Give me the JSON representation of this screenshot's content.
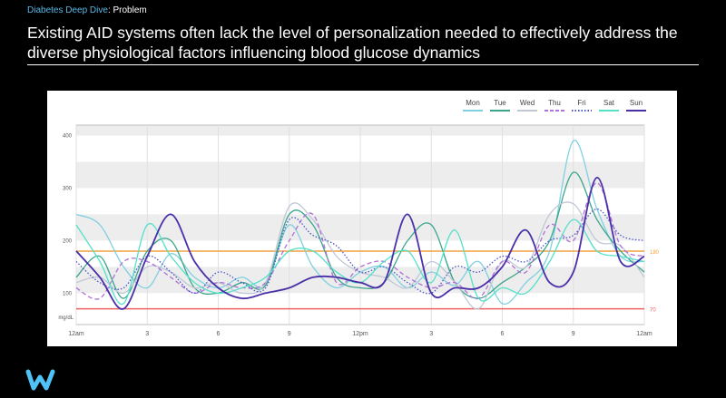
{
  "breadcrumb": {
    "section": "Diabetes Deep Dive",
    "separator": ":",
    "page": "Problem"
  },
  "headline": "Existing AID systems often lack the level of personalization needed to effectively address the diverse physiological factors influencing blood glucose dynamics",
  "logo": {
    "icon": "w-logo-icon",
    "color": "#4fc3f7"
  },
  "chart_data": {
    "type": "line",
    "title": "",
    "xlabel": "",
    "ylabel": "mg/dL",
    "x_ticks": [
      "12am",
      "3",
      "6",
      "9",
      "12pm",
      "3",
      "6",
      "9",
      "12am"
    ],
    "x_hours": [
      0,
      3,
      6,
      9,
      12,
      15,
      18,
      21,
      24
    ],
    "y_ticks": [
      100,
      200,
      300,
      400
    ],
    "ylim": [
      40,
      420
    ],
    "xlim": [
      0,
      24
    ],
    "grid": true,
    "legend_position": "top-right",
    "thresholds": [
      {
        "value": 180,
        "label": "180",
        "color": "#f0a040"
      },
      {
        "value": 70,
        "label": "70",
        "color": "#f06060"
      }
    ],
    "hours": [
      0,
      1,
      2,
      3,
      4,
      5,
      6,
      7,
      8,
      9,
      10,
      11,
      12,
      13,
      14,
      15,
      16,
      17,
      18,
      19,
      20,
      21,
      22,
      23,
      24
    ],
    "series": [
      {
        "name": "Mon",
        "color": "#7fd0e0",
        "dash": "solid",
        "values": [
          250,
          230,
          150,
          110,
          175,
          130,
          110,
          130,
          115,
          230,
          150,
          110,
          140,
          150,
          110,
          140,
          115,
          160,
          80,
          120,
          180,
          390,
          260,
          170,
          160
        ]
      },
      {
        "name": "Tue",
        "color": "#3aa58c",
        "dash": "solid",
        "values": [
          130,
          170,
          90,
          180,
          200,
          110,
          100,
          120,
          115,
          250,
          230,
          130,
          110,
          120,
          200,
          230,
          120,
          90,
          120,
          150,
          200,
          330,
          240,
          180,
          140
        ]
      },
      {
        "name": "Wed",
        "color": "#c0c8d6",
        "dash": "solid",
        "values": [
          120,
          130,
          100,
          150,
          140,
          110,
          120,
          100,
          120,
          265,
          240,
          170,
          140,
          130,
          110,
          160,
          120,
          70,
          160,
          150,
          250,
          270,
          200,
          190,
          130
        ]
      },
      {
        "name": "Thu",
        "color": "#b070d8",
        "dash": "dash",
        "values": [
          110,
          90,
          160,
          160,
          130,
          100,
          120,
          110,
          120,
          200,
          250,
          120,
          150,
          160,
          130,
          110,
          120,
          90,
          160,
          140,
          230,
          200,
          310,
          190,
          170
        ]
      },
      {
        "name": "Fri",
        "color": "#4a55c8",
        "dash": "dot",
        "values": [
          160,
          120,
          110,
          170,
          140,
          100,
          140,
          120,
          110,
          240,
          210,
          190,
          140,
          150,
          120,
          100,
          150,
          140,
          170,
          160,
          200,
          210,
          260,
          210,
          200
        ]
      },
      {
        "name": "Sat",
        "color": "#55e0c8",
        "dash": "solid",
        "values": [
          230,
          160,
          80,
          230,
          170,
          120,
          100,
          110,
          130,
          180,
          180,
          140,
          120,
          160,
          180,
          120,
          220,
          90,
          110,
          100,
          160,
          240,
          180,
          170,
          160
        ]
      },
      {
        "name": "Sun",
        "color": "#4b2fa8",
        "dash": "solid",
        "values": [
          180,
          130,
          70,
          170,
          250,
          160,
          110,
          90,
          100,
          110,
          130,
          130,
          120,
          120,
          250,
          100,
          110,
          110,
          150,
          220,
          120,
          140,
          320,
          160,
          170
        ]
      }
    ]
  }
}
